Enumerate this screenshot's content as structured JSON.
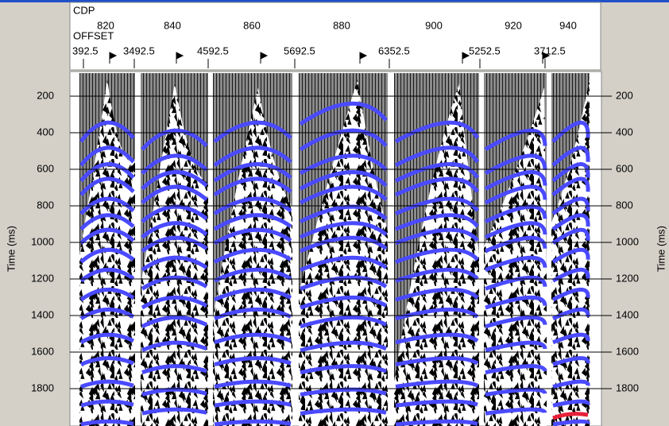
{
  "header": {
    "cdp_label": "CDP",
    "offset_label": "OFFSET",
    "cdp_ticks": [
      820,
      840,
      860,
      880,
      900,
      920,
      940
    ],
    "offset_ticks": [
      "392.5",
      "3492.5",
      "4592.5",
      "5692.5",
      "6352.5",
      "5252.5",
      "3712.5"
    ]
  },
  "axes": {
    "y_label": "Time (ms)",
    "ylim": [
      74,
      2004
    ],
    "yticks": [
      200,
      400,
      600,
      800,
      1000,
      1200,
      1400,
      1600,
      1800
    ]
  }
}
